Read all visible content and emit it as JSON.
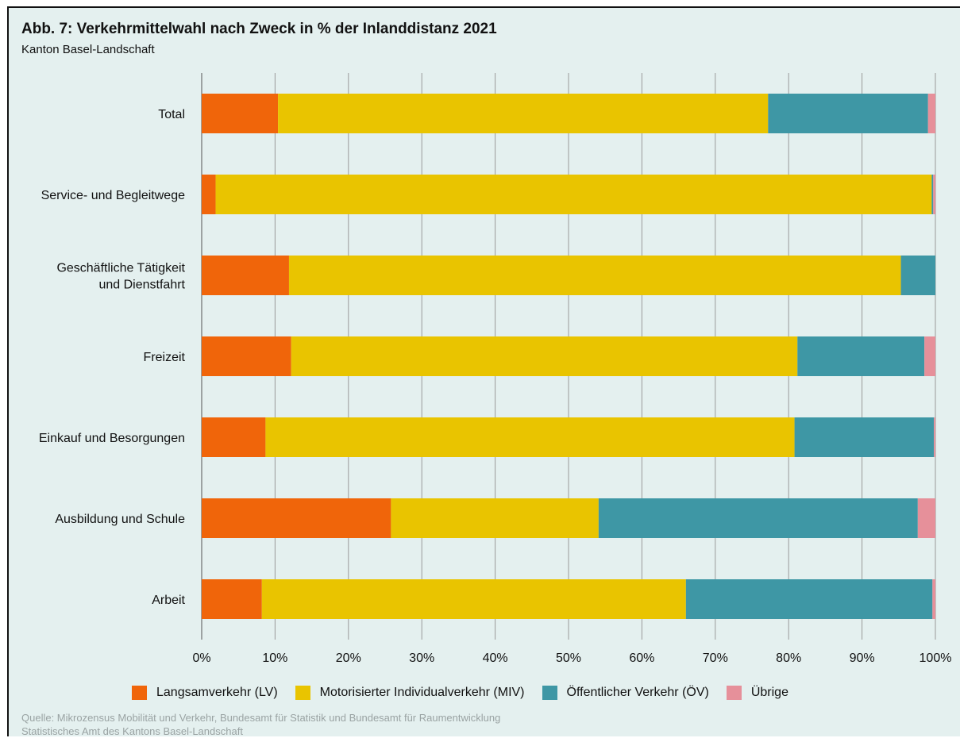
{
  "title": "Abb. 7: Verkehrmittelwahl nach Zweck in % der Inlanddistanz 2021",
  "subtitle": "Kanton Basel-Landschaft",
  "source_line1": "Quelle: Mikrozensus Mobilität und Verkehr, Bundesamt für Statistik und Bundesamt für Raumentwicklung",
  "source_line2": "Statistisches Amt des Kantons Basel-Landschaft",
  "chart_data": {
    "type": "bar",
    "orientation": "horizontal",
    "stacked": true,
    "categories": [
      "Total",
      "Service- und Begleitwege",
      "Geschäftliche Tätigkeit|und Dienstfahrt",
      "Freizeit",
      "Einkauf und Besorgungen",
      "Ausbildung und Schule",
      "Arbeit"
    ],
    "series": [
      {
        "name": "Langsamverkehr (LV)",
        "color": "#f0650a",
        "values": [
          10.4,
          1.9,
          11.9,
          12.2,
          8.7,
          25.8,
          8.2
        ]
      },
      {
        "name": "Motorisierter Individualverkehr (MIV)",
        "color": "#e9c400",
        "values": [
          66.8,
          97.6,
          83.4,
          69.0,
          72.1,
          28.3,
          57.8
        ]
      },
      {
        "name": "Öffentlicher Verkehr (ÖV)",
        "color": "#3e97a5",
        "values": [
          21.8,
          0.2,
          4.7,
          17.3,
          19.0,
          43.5,
          33.6
        ]
      },
      {
        "name": "Übrige",
        "color": "#e6909a",
        "values": [
          1.0,
          0.3,
          0.0,
          1.5,
          0.2,
          2.4,
          0.4
        ]
      }
    ],
    "xlim": [
      0,
      100
    ],
    "x_ticks": [
      "0%",
      "10%",
      "20%",
      "30%",
      "40%",
      "50%",
      "60%",
      "70%",
      "80%",
      "90%",
      "100%"
    ],
    "grid": true,
    "legend_position": "bottom"
  }
}
